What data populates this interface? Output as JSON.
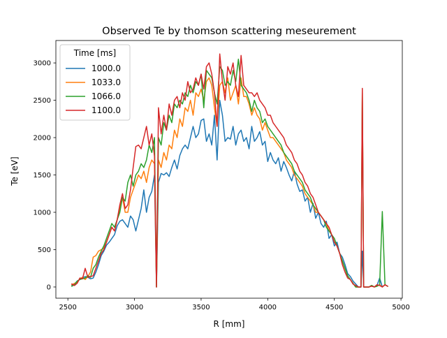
{
  "chart_data": {
    "type": "line",
    "title": "Observed Te by thomson scattering meseurement",
    "xlabel": "R [mm]",
    "ylabel": "Te [eV]",
    "xlim": [
      2410,
      5010
    ],
    "ylim": [
      -150,
      3300
    ],
    "xticks": [
      2500,
      3000,
      3500,
      4000,
      4500,
      5000
    ],
    "yticks": [
      0,
      500,
      1000,
      1500,
      2000,
      2500,
      3000
    ],
    "grid": false,
    "legend": {
      "title": "Time [ms]",
      "placement": "top-left"
    },
    "series": [
      {
        "name": "1000.0",
        "color": "#1f77b4",
        "x": [
          2530,
          2550,
          2570,
          2590,
          2610,
          2630,
          2650,
          2670,
          2690,
          2710,
          2730,
          2750,
          2770,
          2790,
          2810,
          2830,
          2850,
          2870,
          2890,
          2910,
          2930,
          2950,
          2970,
          2990,
          3010,
          3030,
          3050,
          3070,
          3090,
          3110,
          3130,
          3150,
          3165,
          3180,
          3200,
          3220,
          3240,
          3260,
          3280,
          3300,
          3320,
          3340,
          3360,
          3380,
          3400,
          3420,
          3440,
          3460,
          3480,
          3500,
          3520,
          3540,
          3560,
          3580,
          3600,
          3620,
          3640,
          3660,
          3680,
          3700,
          3720,
          3740,
          3760,
          3780,
          3800,
          3820,
          3840,
          3860,
          3880,
          3900,
          3920,
          3940,
          3960,
          3980,
          4000,
          4020,
          4040,
          4060,
          4080,
          4100,
          4120,
          4140,
          4160,
          4180,
          4200,
          4220,
          4240,
          4260,
          4280,
          4300,
          4320,
          4340,
          4360,
          4380,
          4400,
          4420,
          4440,
          4460,
          4480,
          4500,
          4520,
          4540,
          4560,
          4580,
          4600,
          4620,
          4640,
          4660,
          4680,
          4700,
          4710,
          4720,
          4740,
          4760,
          4780,
          4800,
          4820,
          4840,
          4860,
          4880,
          4900
        ],
        "y": [
          20,
          40,
          80,
          100,
          120,
          140,
          130,
          110,
          120,
          200,
          300,
          420,
          480,
          560,
          600,
          650,
          700,
          820,
          880,
          900,
          850,
          800,
          950,
          900,
          750,
          900,
          1050,
          1300,
          1000,
          1200,
          1280,
          1500,
          0,
          1400,
          1520,
          1500,
          1530,
          1480,
          1600,
          1700,
          1580,
          1760,
          1850,
          1900,
          1850,
          2000,
          2150,
          2000,
          2050,
          2230,
          2250,
          1950,
          2050,
          1900,
          2300,
          1700,
          2500,
          2300,
          1950,
          2000,
          1980,
          2150,
          1900,
          2050,
          2100,
          1950,
          2000,
          1850,
          2150,
          1950,
          2000,
          2080,
          1900,
          1950,
          1680,
          1800,
          1700,
          1650,
          1730,
          1550,
          1680,
          1600,
          1500,
          1420,
          1550,
          1380,
          1280,
          1300,
          1150,
          1200,
          1000,
          1120,
          920,
          1000,
          850,
          800,
          880,
          650,
          700,
          550,
          600,
          450,
          400,
          300,
          180,
          140,
          80,
          40,
          0,
          0,
          480,
          0,
          0,
          0,
          20,
          0,
          20,
          120,
          0,
          30,
          10
        ]
      },
      {
        "name": "1033.0",
        "color": "#ff7f0e",
        "x": [
          2530,
          2550,
          2570,
          2590,
          2610,
          2630,
          2650,
          2670,
          2690,
          2710,
          2730,
          2750,
          2770,
          2790,
          2810,
          2830,
          2850,
          2870,
          2890,
          2910,
          2930,
          2950,
          2970,
          2990,
          3010,
          3030,
          3050,
          3070,
          3090,
          3110,
          3130,
          3150,
          3165,
          3180,
          3200,
          3220,
          3240,
          3260,
          3280,
          3300,
          3320,
          3340,
          3360,
          3380,
          3400,
          3420,
          3440,
          3460,
          3480,
          3500,
          3520,
          3540,
          3560,
          3580,
          3600,
          3620,
          3640,
          3660,
          3680,
          3700,
          3720,
          3740,
          3760,
          3780,
          3800,
          3820,
          3840,
          3860,
          3880,
          3900,
          3920,
          3940,
          3960,
          3980,
          4000,
          4020,
          4040,
          4060,
          4080,
          4100,
          4120,
          4140,
          4160,
          4180,
          4200,
          4220,
          4240,
          4260,
          4280,
          4300,
          4320,
          4340,
          4360,
          4380,
          4400,
          4420,
          4440,
          4460,
          4480,
          4500,
          4520,
          4540,
          4560,
          4580,
          4600,
          4620,
          4640,
          4660,
          4680,
          4700,
          4710,
          4720,
          4740,
          4760,
          4780,
          4800,
          4820,
          4840,
          4860,
          4880,
          4900
        ],
        "y": [
          30,
          50,
          60,
          110,
          130,
          100,
          140,
          200,
          400,
          420,
          480,
          500,
          520,
          600,
          700,
          800,
          750,
          900,
          1050,
          1200,
          1000,
          1000,
          1200,
          1300,
          1400,
          1500,
          1450,
          1550,
          1400,
          1600,
          1700,
          1650,
          0,
          1700,
          1600,
          1800,
          1700,
          1900,
          1850,
          2100,
          2000,
          2250,
          2150,
          2400,
          2350,
          2500,
          2300,
          2600,
          2550,
          2650,
          2500,
          2750,
          2800,
          2700,
          2400,
          2150,
          2700,
          2750,
          2600,
          2800,
          2500,
          2600,
          2700,
          2450,
          2800,
          2550,
          2550,
          2450,
          2300,
          2400,
          2300,
          2250,
          2100,
          2200,
          2100,
          2000,
          2000,
          1950,
          1900,
          1850,
          1800,
          1700,
          1650,
          1600,
          1500,
          1450,
          1400,
          1350,
          1250,
          1200,
          1150,
          1100,
          1000,
          1000,
          950,
          900,
          850,
          750,
          700,
          600,
          550,
          450,
          350,
          250,
          150,
          100,
          50,
          0,
          0,
          0,
          2650,
          0,
          0,
          0,
          20,
          0,
          10,
          30,
          0,
          30,
          10
        ]
      },
      {
        "name": "1066.0",
        "color": "#2ca02c",
        "x": [
          2530,
          2550,
          2570,
          2590,
          2610,
          2630,
          2650,
          2670,
          2690,
          2710,
          2730,
          2750,
          2770,
          2790,
          2810,
          2830,
          2850,
          2870,
          2890,
          2910,
          2930,
          2950,
          2970,
          2990,
          3010,
          3030,
          3050,
          3070,
          3090,
          3110,
          3130,
          3150,
          3165,
          3180,
          3200,
          3220,
          3240,
          3260,
          3280,
          3300,
          3320,
          3340,
          3360,
          3380,
          3400,
          3420,
          3440,
          3460,
          3480,
          3500,
          3520,
          3540,
          3560,
          3580,
          3600,
          3620,
          3640,
          3660,
          3680,
          3700,
          3720,
          3740,
          3760,
          3780,
          3800,
          3820,
          3840,
          3860,
          3880,
          3900,
          3920,
          3940,
          3960,
          3980,
          4000,
          4020,
          4040,
          4060,
          4080,
          4100,
          4120,
          4140,
          4160,
          4180,
          4200,
          4220,
          4240,
          4260,
          4280,
          4300,
          4320,
          4340,
          4360,
          4380,
          4400,
          4420,
          4440,
          4460,
          4480,
          4500,
          4520,
          4540,
          4560,
          4580,
          4600,
          4620,
          4640,
          4660,
          4680,
          4700,
          4710,
          4720,
          4740,
          4760,
          4780,
          4800,
          4820,
          4840,
          4860,
          4880,
          4900
        ],
        "y": [
          10,
          30,
          80,
          100,
          110,
          120,
          150,
          130,
          250,
          300,
          400,
          480,
          550,
          650,
          750,
          850,
          800,
          900,
          1000,
          1200,
          1150,
          1400,
          1500,
          1350,
          1500,
          1550,
          1650,
          1600,
          1700,
          1900,
          1800,
          2000,
          0,
          2000,
          1900,
          2200,
          2100,
          2300,
          2200,
          2450,
          2400,
          2500,
          2450,
          2600,
          2550,
          2700,
          2600,
          2750,
          2700,
          2850,
          2400,
          2900,
          2850,
          2800,
          2600,
          2450,
          2950,
          2900,
          2700,
          2750,
          2700,
          2900,
          2750,
          3050,
          2700,
          2650,
          2600,
          2500,
          2350,
          2500,
          2400,
          2350,
          2200,
          2250,
          2150,
          2100,
          2050,
          2000,
          1950,
          1900,
          1800,
          1750,
          1700,
          1650,
          1550,
          1500,
          1450,
          1400,
          1300,
          1250,
          1200,
          1100,
          1050,
          1000,
          950,
          900,
          800,
          750,
          700,
          650,
          550,
          450,
          350,
          250,
          150,
          100,
          50,
          0,
          0,
          0,
          2600,
          0,
          0,
          0,
          20,
          0,
          10,
          30,
          1010,
          30,
          10
        ]
      },
      {
        "name": "1100.0",
        "color": "#d62728",
        "x": [
          2530,
          2550,
          2570,
          2590,
          2610,
          2630,
          2650,
          2670,
          2690,
          2710,
          2730,
          2750,
          2770,
          2790,
          2810,
          2830,
          2850,
          2870,
          2890,
          2910,
          2930,
          2950,
          2970,
          2990,
          3010,
          3030,
          3050,
          3070,
          3090,
          3110,
          3130,
          3150,
          3165,
          3180,
          3200,
          3220,
          3240,
          3260,
          3280,
          3300,
          3320,
          3340,
          3360,
          3380,
          3400,
          3420,
          3440,
          3460,
          3480,
          3500,
          3520,
          3540,
          3560,
          3580,
          3600,
          3620,
          3640,
          3660,
          3680,
          3700,
          3720,
          3740,
          3760,
          3780,
          3800,
          3820,
          3840,
          3860,
          3880,
          3900,
          3920,
          3940,
          3960,
          3980,
          4000,
          4020,
          4040,
          4060,
          4080,
          4100,
          4120,
          4140,
          4160,
          4180,
          4200,
          4220,
          4240,
          4260,
          4280,
          4300,
          4320,
          4340,
          4360,
          4380,
          4400,
          4420,
          4440,
          4460,
          4480,
          4500,
          4520,
          4540,
          4560,
          4580,
          4600,
          4620,
          4640,
          4660,
          4680,
          4700,
          4710,
          4720,
          4740,
          4760,
          4780,
          4800,
          4820,
          4840,
          4860,
          4880,
          4900
        ],
        "y": [
          40,
          20,
          50,
          120,
          110,
          250,
          130,
          140,
          150,
          250,
          350,
          450,
          500,
          600,
          700,
          800,
          750,
          900,
          1100,
          1250,
          1050,
          1100,
          1300,
          1600,
          1880,
          1900,
          1850,
          2000,
          2150,
          1900,
          2050,
          1750,
          0,
          2400,
          2050,
          2300,
          2100,
          2450,
          2300,
          2500,
          2550,
          2400,
          2600,
          2500,
          2750,
          2600,
          2650,
          2800,
          2700,
          2850,
          2650,
          2950,
          3000,
          2850,
          2600,
          2150,
          3120,
          2750,
          2500,
          2950,
          2850,
          3000,
          2700,
          2550,
          3100,
          2700,
          2650,
          2600,
          2600,
          2550,
          2600,
          2500,
          2450,
          2400,
          2300,
          2300,
          2200,
          2150,
          2100,
          2050,
          2000,
          1900,
          1850,
          1800,
          1700,
          1650,
          1550,
          1500,
          1400,
          1350,
          1250,
          1200,
          1100,
          1000,
          950,
          900,
          850,
          800,
          700,
          600,
          550,
          450,
          300,
          200,
          120,
          100,
          40,
          20,
          0,
          0,
          2660,
          0,
          0,
          0,
          10,
          0,
          30,
          20,
          0,
          30,
          10
        ]
      }
    ]
  }
}
